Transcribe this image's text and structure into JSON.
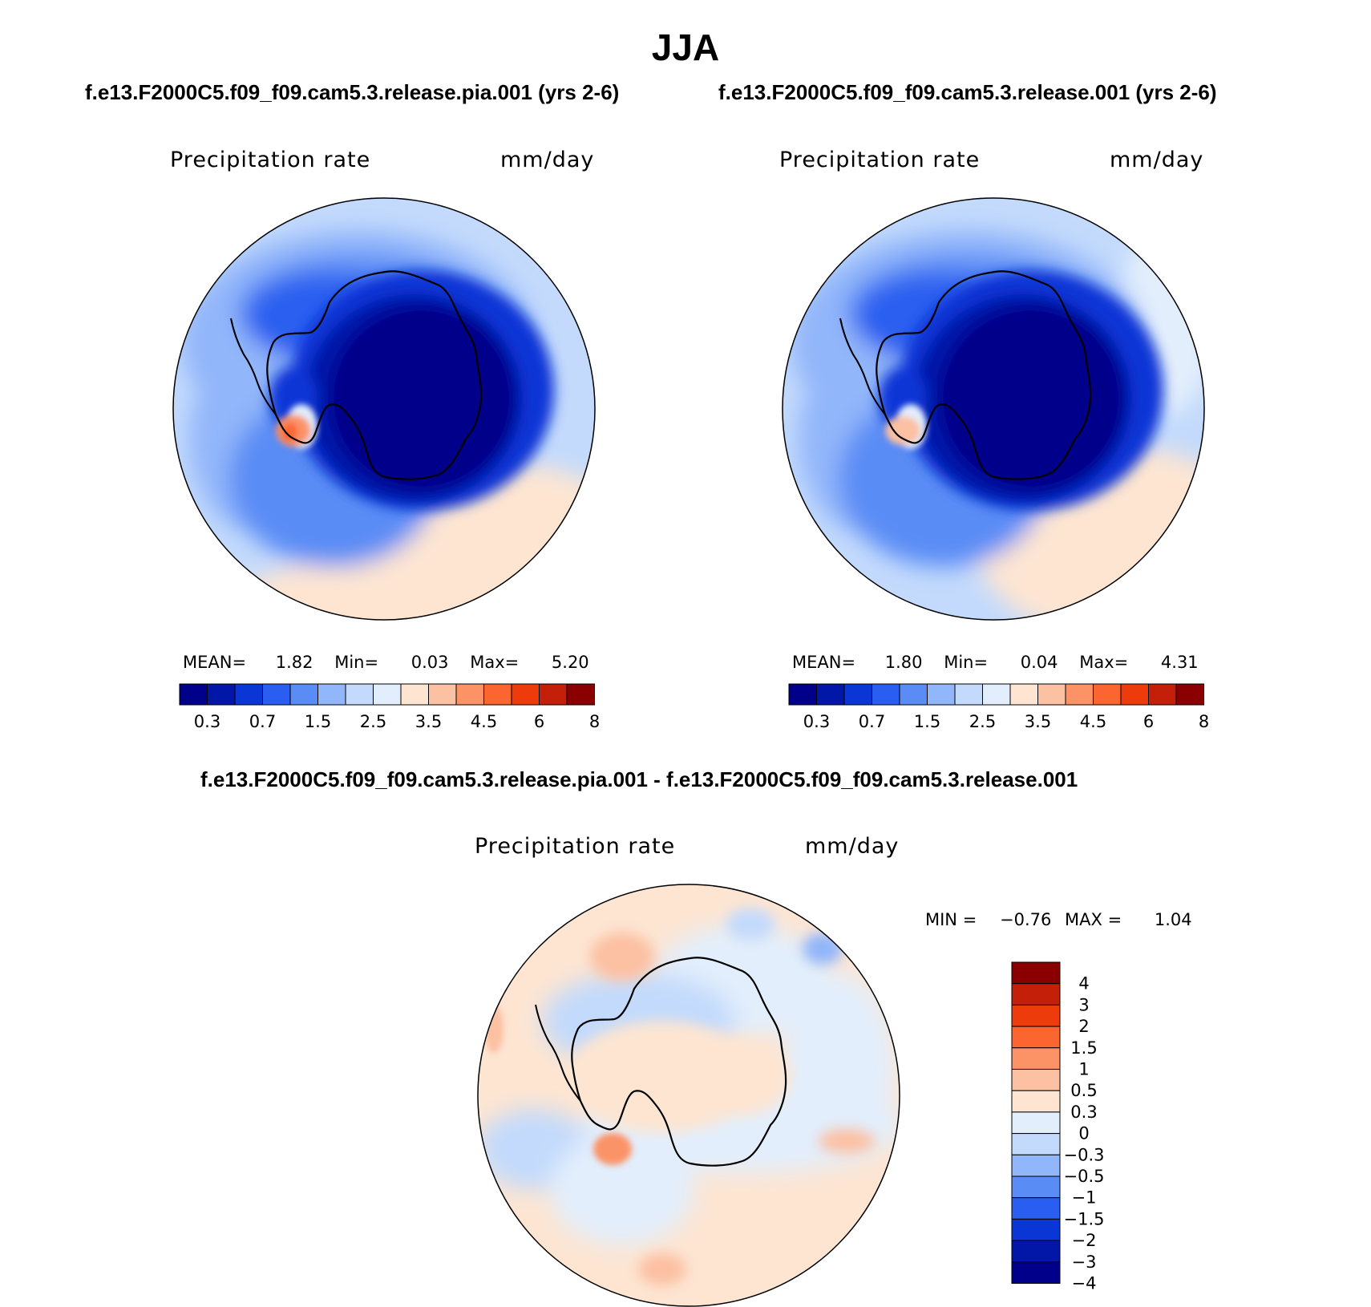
{
  "figure_title": "JJA",
  "panels": [
    {
      "case_title": "f.e13.F2000C5.f09_f09.cam5.3.release.pia.001 (yrs 2-6)",
      "variable": "Precipitation rate",
      "units": "mm/day",
      "stats": {
        "mean_label": "MEAN=",
        "mean": "1.82",
        "min_label": "Min=",
        "min": "0.03",
        "max_label": "Max=",
        "max": "5.20"
      }
    },
    {
      "case_title": "f.e13.F2000C5.f09_f09.cam5.3.release.001 (yrs 2-6)",
      "variable": "Precipitation rate",
      "units": "mm/day",
      "stats": {
        "mean_label": "MEAN=",
        "mean": "1.80",
        "min_label": "Min=",
        "min": "0.04",
        "max_label": "Max=",
        "max": "4.31"
      }
    }
  ],
  "diff_panel": {
    "case_title": "f.e13.F2000C5.f09_f09.cam5.3.release.pia.001 - f.e13.F2000C5.f09_f09.cam5.3.release.001",
    "variable": "Precipitation rate",
    "units": "mm/day",
    "stats": {
      "min_label": "MIN =",
      "min": "−0.76",
      "max_label": "MAX =",
      "max": "1.04"
    }
  },
  "chart_data": [
    {
      "type": "heatmap",
      "projection": "south-polar stereographic",
      "title": "Precipitation rate",
      "units": "mm/day",
      "mean": 1.82,
      "min": 0.03,
      "max": 5.2,
      "colorbar": {
        "orientation": "horizontal",
        "tick_labels": [
          "0.3",
          "0.7",
          "1.5",
          "2.5",
          "3.5",
          "4.5",
          "6",
          "8"
        ],
        "colors": [
          "#00008a",
          "#0216a8",
          "#0a36d6",
          "#2a5ef0",
          "#5a8cf5",
          "#92b6fa",
          "#c3dafc",
          "#e2eefc",
          "#fde5d2",
          "#fcc0a2",
          "#fb9367",
          "#fb6630",
          "#ee3b0c",
          "#c41f08",
          "#8a0000"
        ]
      },
      "antarctic_interior": "0.1 mm/day (deep blue)",
      "peak_region": "west Antarctic Peninsula, ~5 mm/day"
    },
    {
      "type": "heatmap",
      "projection": "south-polar stereographic",
      "title": "Precipitation rate",
      "units": "mm/day",
      "mean": 1.8,
      "min": 0.04,
      "max": 4.31,
      "colorbar": {
        "orientation": "horizontal",
        "tick_labels": [
          "0.3",
          "0.7",
          "1.5",
          "2.5",
          "3.5",
          "4.5",
          "6",
          "8"
        ],
        "colors": [
          "#00008a",
          "#0216a8",
          "#0a36d6",
          "#2a5ef0",
          "#5a8cf5",
          "#92b6fa",
          "#c3dafc",
          "#e2eefc",
          "#fde5d2",
          "#fcc0a2",
          "#fb9367",
          "#fb6630",
          "#ee3b0c",
          "#c41f08",
          "#8a0000"
        ]
      },
      "antarctic_interior": "0.1 mm/day (deep blue)",
      "peak_region": "west Antarctic Peninsula, ~3.5 mm/day"
    },
    {
      "type": "heatmap",
      "projection": "south-polar stereographic",
      "title": "Precipitation rate",
      "units": "mm/day",
      "min": -0.76,
      "max": 1.04,
      "colorbar": {
        "orientation": "vertical",
        "tick_labels": [
          "4",
          "3",
          "2",
          "1.5",
          "1",
          "0.5",
          "0.3",
          "0",
          "−0.3",
          "−0.5",
          "−1",
          "−1.5",
          "−2",
          "−3",
          "−4"
        ],
        "colors": [
          "#8a0000",
          "#c41f08",
          "#ee3b0c",
          "#fb6630",
          "#fb9367",
          "#fcc0a2",
          "#fde5d2",
          "#e2eefc",
          "#c3dafc",
          "#92b6fa",
          "#5a8cf5",
          "#2a5ef0",
          "#0a36d6",
          "#0216a8",
          "#00008a"
        ]
      }
    }
  ]
}
